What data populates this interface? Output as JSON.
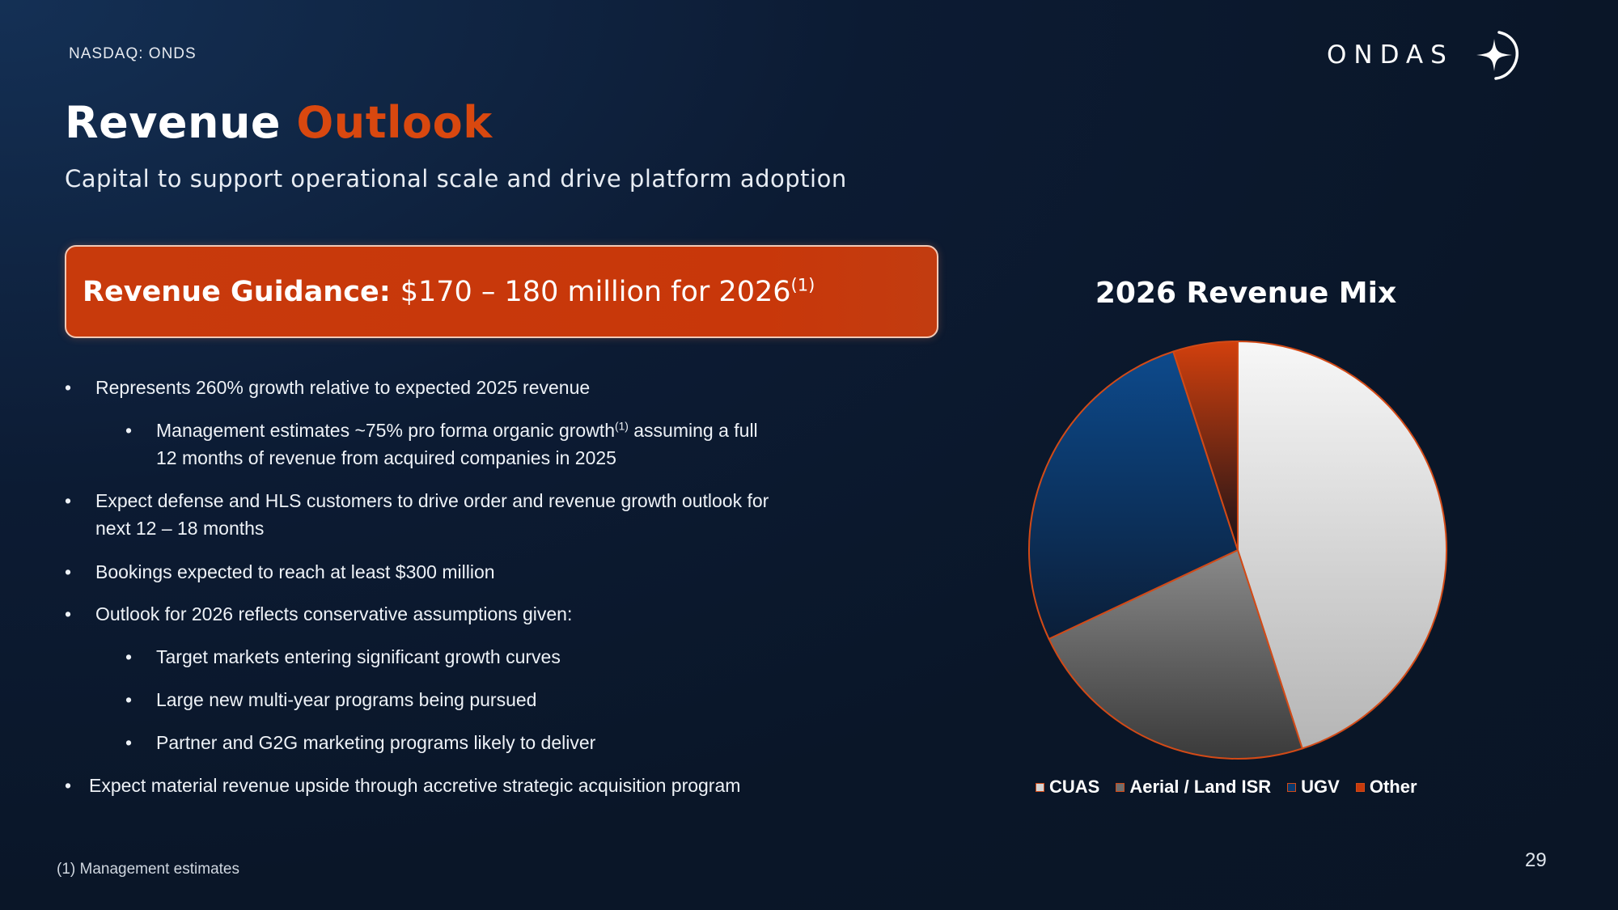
{
  "header": {
    "ticker": "NASDAQ: ONDS",
    "logo_text": "ONDAS"
  },
  "title": {
    "main": "Revenue",
    "accent": "Outlook",
    "subtitle": "Capital to support operational scale and drive platform adoption"
  },
  "guidance": {
    "label": "Revenue Guidance:",
    "value": "$170 – 180 million for 2026",
    "footnote_ref": "(1)"
  },
  "bullets": [
    {
      "level": 1,
      "text": "Represents 260% growth relative to expected 2025 revenue"
    },
    {
      "level": 2,
      "text_before": "Management estimates ~75% pro forma organic growth",
      "sup": "(1)",
      "text_after": " assuming a full 12 months of revenue from acquired companies in 2025"
    },
    {
      "level": 1,
      "text": "Expect defense and HLS customers to drive order and revenue growth outlook for next 12 – 18 months"
    },
    {
      "level": 1,
      "text": "Bookings expected to reach at least $300 million"
    },
    {
      "level": 1,
      "text": "Outlook for 2026 reflects conservative assumptions given:"
    },
    {
      "level": 2,
      "text": "Target markets entering significant growth curves"
    },
    {
      "level": 2,
      "text": "Large new multi-year programs being pursued"
    },
    {
      "level": 2,
      "text": "Partner and G2G marketing programs likely to deliver"
    },
    {
      "level": 1,
      "text": "Expect material revenue upside through accretive strategic acquisition program"
    }
  ],
  "chart_data": {
    "type": "pie",
    "title": "2026 Revenue Mix",
    "categories": [
      "CUAS",
      "Aerial / Land ISR",
      "UGV",
      "Other"
    ],
    "values": [
      45,
      23,
      27,
      5
    ],
    "unit": "%",
    "legend_position": "bottom",
    "colors": [
      "#d4d4d4",
      "#6e6e6e",
      "#0b3a6e",
      "#c73a0c"
    ]
  },
  "footer": {
    "footnote": "(1) Management estimates",
    "page_number": "29"
  }
}
